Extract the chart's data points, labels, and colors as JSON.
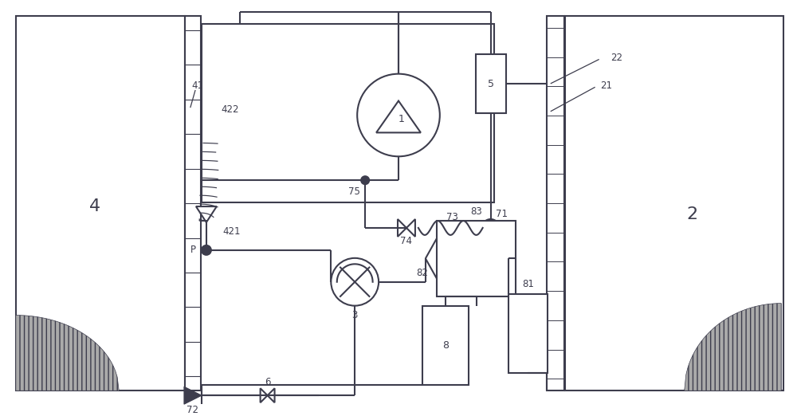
{
  "bg": "#ffffff",
  "lc": "#3d3d4d",
  "lw": 1.5,
  "fw": 10.0,
  "fh": 5.22,
  "dpi": 100
}
